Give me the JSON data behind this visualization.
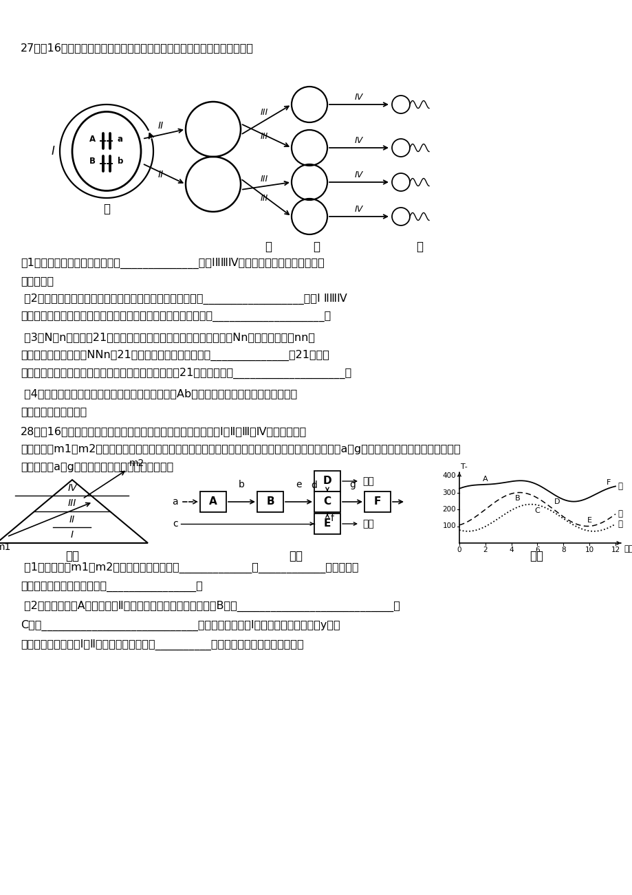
{
  "bg": "#ffffff",
  "q27_title": "27、（16分）下图表示某高等动物体内细胞分裂示意图。请据图回答问题：",
  "q28_title": "28、（16分）下图甲为某湖泊生态系统的能量金字塔简图，其中I、Ⅱ、Ⅲ、Ⅳ分别代表不同",
  "q28_title2": "的营养级，m1、m2代表不同的能量形式。图乙表示能量流经该生态系统某一营养级的变化示意图，其中a～g表示能量值的多少。请据图作答：",
  "q27_1": "（1）图中表示减数分裂过程的是______________（用ⅠⅡⅢⅣ填空）。一个甲细胞可以产生",
  "q27_1b": "种丙细胞。",
  "q27_2": " （2）若细胞甲是人体造血干细胞，可能会发生的分裂过程是__________________（用Ⅰ ⅡⅢⅣ",
  "q27_2b": "填空），在分裂过程中，能复制并平均分配到子细胞中的细胞器是____________________。",
  "q27_3": " （3）N、n是人类第21号某色体上的一对等位基因，父亲基因型为Nn，母亲基因型为nn，",
  "q27_3b": "他们生了一个基因型为NNn的21三体综合症孩子，则双亲中______________的21号某色",
  "q27_3c": "体在减数分裂中发生了正常分离。能否用显微镜棄测出21三体综合症？____________________。",
  "q27_4": " （4）请在答题纸的相应位置画出产生一个基因型为Ab的次级精母细胞后期图形，并在某色",
  "q27_4b": "体上标注相应的基因。",
  "q28_1": " （1）图甲中，m1、m2表示的能量形式分别为_____________、____________。图甲中没",
  "q28_1b": "有反映出来的生态系统成分是________________。",
  "q28_2": " （2）图乙中，若A表示营养级Ⅱ所摄入（吃进）的全部能量，则B表示____________________________，",
  "q28_2b": "C表示____________________________。若图甲中营养级Ⅰ所固定的太阳能总量为y，则",
  "q28_2c": "对应在图乙中营养级Ⅰ、Ⅱ间的能量传递效率是__________（选用图乙中所给字母书写表达"
}
